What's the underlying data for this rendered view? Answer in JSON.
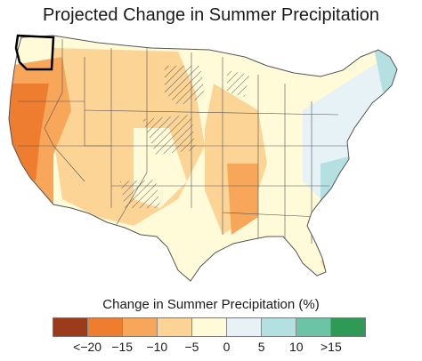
{
  "title": "Projected Change in Summer Precipitation",
  "legend": {
    "title": "Change in Summer Precipitation (%)",
    "tick_labels": [
      "<−20",
      "−15",
      "−10",
      "−5",
      "0",
      "5",
      "10",
      ">15"
    ],
    "colors": [
      "#9c3a1c",
      "#ee7d2f",
      "#f8a65a",
      "#fcd596",
      "#fffad8",
      "#e6f2f5",
      "#b5e0e2",
      "#6cc3a6",
      "#2e9a55"
    ]
  },
  "map": {
    "region": "Contiguous United States",
    "highlighted_state": "Washington",
    "highlight_color": "#000000",
    "hatching_color": "#555555"
  }
}
